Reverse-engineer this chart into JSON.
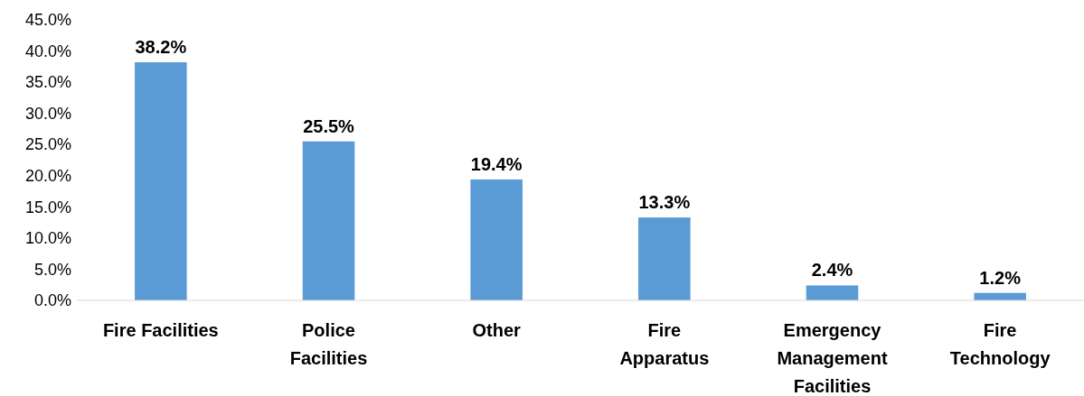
{
  "chart_data": {
    "type": "bar",
    "categories": [
      "Fire Facilities",
      "Police\nFacilities",
      "Other",
      "Fire\nApparatus",
      "Emergency\nManagement\nFacilities",
      "Fire\nTechnology"
    ],
    "values": [
      38.2,
      25.5,
      19.4,
      13.3,
      2.4,
      1.2
    ],
    "value_labels": [
      "38.2%",
      "25.5%",
      "19.4%",
      "13.3%",
      "2.4%",
      "1.2%"
    ],
    "color": "#5b9bd5",
    "ylim": [
      0,
      45
    ],
    "yticks": [
      {
        "value": 0,
        "label": "0.0%"
      },
      {
        "value": 5,
        "label": "5.0%"
      },
      {
        "value": 10,
        "label": "10.0%"
      },
      {
        "value": 15,
        "label": "15.0%"
      },
      {
        "value": 20,
        "label": "20.0%"
      },
      {
        "value": 25,
        "label": "25.0%"
      },
      {
        "value": 30,
        "label": "30.0%"
      },
      {
        "value": 35,
        "label": "35.0%"
      },
      {
        "value": 40,
        "label": "40.0%"
      },
      {
        "value": 45,
        "label": "45.0%"
      }
    ],
    "grid": false
  }
}
